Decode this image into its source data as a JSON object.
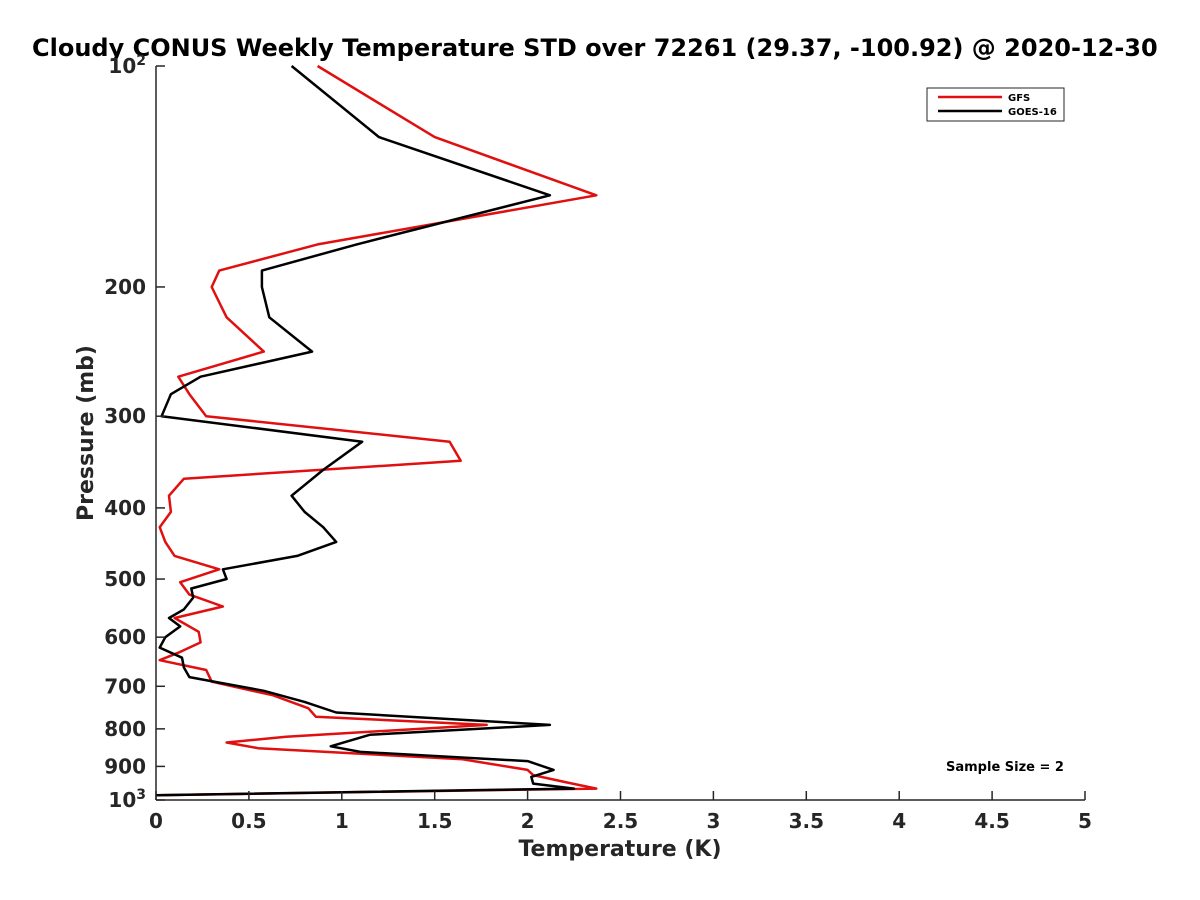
{
  "chart_data": {
    "type": "line",
    "title": "Cloudy CONUS Weekly Temperature STD over 72261 (29.37, -100.92) @ 2020-12-30",
    "xlabel": "Temperature (K)",
    "ylabel": "Pressure (mb)",
    "xlim": [
      0,
      5
    ],
    "ylim": [
      100,
      1000
    ],
    "yscale": "log",
    "y_reversed": true,
    "grid": false,
    "legend_location": "top-right",
    "x_ticks": [
      0,
      0.5,
      1,
      1.5,
      2,
      2.5,
      3,
      3.5,
      4,
      4.5,
      5
    ],
    "x_tick_labels": [
      "0",
      "0.5",
      "1",
      "1.5",
      "2",
      "2.5",
      "3",
      "3.5",
      "4",
      "4.5",
      "5"
    ],
    "y_ticks": [
      100,
      200,
      300,
      400,
      500,
      600,
      700,
      800,
      900,
      1000
    ],
    "y_tick_labels": [
      {
        "base": "10",
        "exp": "2"
      },
      {
        "base": "200",
        "exp": ""
      },
      {
        "base": "300",
        "exp": ""
      },
      {
        "base": "400",
        "exp": ""
      },
      {
        "base": "500",
        "exp": ""
      },
      {
        "base": "600",
        "exp": ""
      },
      {
        "base": "700",
        "exp": ""
      },
      {
        "base": "800",
        "exp": ""
      },
      {
        "base": "900",
        "exp": ""
      },
      {
        "base": "10",
        "exp": "3"
      }
    ],
    "annotation": "Sample Size = 2",
    "series": [
      {
        "name": "GFS",
        "color": "#e01010",
        "points": [
          [
            0.87,
            100
          ],
          [
            1.5,
            125
          ],
          [
            2.37,
            150
          ],
          [
            0.87,
            175
          ],
          [
            0.34,
            190
          ],
          [
            0.3,
            200
          ],
          [
            0.38,
            220
          ],
          [
            0.58,
            245
          ],
          [
            0.12,
            265
          ],
          [
            0.18,
            280
          ],
          [
            0.27,
            300
          ],
          [
            1.58,
            325
          ],
          [
            1.64,
            345
          ],
          [
            0.15,
            365
          ],
          [
            0.07,
            385
          ],
          [
            0.08,
            405
          ],
          [
            0.02,
            425
          ],
          [
            0.05,
            445
          ],
          [
            0.1,
            465
          ],
          [
            0.34,
            485
          ],
          [
            0.13,
            505
          ],
          [
            0.18,
            525
          ],
          [
            0.36,
            545
          ],
          [
            0.1,
            565
          ],
          [
            0.23,
            590
          ],
          [
            0.24,
            610
          ],
          [
            0.12,
            630
          ],
          [
            0.02,
            645
          ],
          [
            0.27,
            665
          ],
          [
            0.3,
            690
          ],
          [
            0.63,
            720
          ],
          [
            0.82,
            750
          ],
          [
            0.86,
            770
          ],
          [
            1.78,
            790
          ],
          [
            0.7,
            820
          ],
          [
            0.38,
            835
          ],
          [
            0.55,
            850
          ],
          [
            1.65,
            880
          ],
          [
            2.0,
            910
          ],
          [
            2.03,
            925
          ],
          [
            2.2,
            945
          ],
          [
            2.37,
            965
          ],
          [
            0.0,
            985
          ]
        ]
      },
      {
        "name": "GOES-16",
        "color": "#000000",
        "points": [
          [
            0.73,
            100
          ],
          [
            1.2,
            125
          ],
          [
            2.12,
            150
          ],
          [
            1.08,
            175
          ],
          [
            0.57,
            190
          ],
          [
            0.57,
            200
          ],
          [
            0.61,
            220
          ],
          [
            0.84,
            245
          ],
          [
            0.24,
            265
          ],
          [
            0.08,
            280
          ],
          [
            0.03,
            300
          ],
          [
            1.11,
            325
          ],
          [
            0.9,
            355
          ],
          [
            0.73,
            385
          ],
          [
            0.8,
            405
          ],
          [
            0.9,
            425
          ],
          [
            0.97,
            445
          ],
          [
            0.76,
            465
          ],
          [
            0.36,
            485
          ],
          [
            0.38,
            500
          ],
          [
            0.19,
            515
          ],
          [
            0.2,
            530
          ],
          [
            0.15,
            550
          ],
          [
            0.07,
            565
          ],
          [
            0.13,
            580
          ],
          [
            0.05,
            600
          ],
          [
            0.02,
            620
          ],
          [
            0.14,
            640
          ],
          [
            0.15,
            660
          ],
          [
            0.18,
            680
          ],
          [
            0.58,
            710
          ],
          [
            0.8,
            735
          ],
          [
            0.97,
            760
          ],
          [
            2.12,
            790
          ],
          [
            1.15,
            815
          ],
          [
            0.94,
            845
          ],
          [
            1.1,
            860
          ],
          [
            2.0,
            885
          ],
          [
            2.14,
            910
          ],
          [
            2.02,
            930
          ],
          [
            2.03,
            950
          ],
          [
            2.25,
            965
          ],
          [
            0.0,
            985
          ]
        ]
      }
    ]
  }
}
